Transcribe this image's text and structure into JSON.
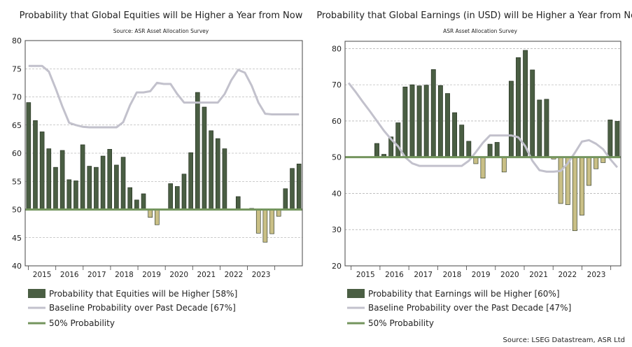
{
  "source_note": "Source: LSEG Datastream,  ASR Ltd",
  "chart_data": [
    {
      "type": "bar",
      "title": "Probability that Global Equities will be Higher a Year from Now",
      "subtitle": "Source: ASR Asset Allocation Survey",
      "ylim": [
        40,
        80
      ],
      "yticks": [
        40,
        45,
        50,
        55,
        60,
        65,
        70,
        75,
        80
      ],
      "xticks": [
        "2015",
        "2016",
        "2017",
        "2018",
        "2019",
        "2020",
        "2021",
        "2022",
        "2023"
      ],
      "baseline_level": 50,
      "series": [
        {
          "name": "Probability that Equities will be Higher [58%]",
          "kind": "bar",
          "values": [
            69,
            65.8,
            63.8,
            60.8,
            57.5,
            60.5,
            55.3,
            55.1,
            61.5,
            57.7,
            57.5,
            59.5,
            60.7,
            57.9,
            59.3,
            53.9,
            51.7,
            52.8,
            48.6,
            47.3,
            null,
            54.6,
            54.1,
            56.3,
            60.1,
            70.8,
            68.2,
            64.0,
            62.6,
            60.8,
            null,
            52.3,
            null,
            50.2,
            45.8,
            44.2,
            45.7,
            48.8,
            53.7,
            57.3,
            58.1
          ]
        },
        {
          "name": "Baseline Probability over Past Decade [67%]",
          "kind": "line",
          "values": [
            75.5,
            75.5,
            75.5,
            74.5,
            71.5,
            68.3,
            65.4,
            65.0,
            64.7,
            64.6,
            64.6,
            64.6,
            64.6,
            64.6,
            65.5,
            68.5,
            70.8,
            70.8,
            71.0,
            72.5,
            72.3,
            72.3,
            70.5,
            69.0,
            69.0,
            69.0,
            69.0,
            69.0,
            69.0,
            70.5,
            73.0,
            74.8,
            74.3,
            72.0,
            69.0,
            67.0,
            66.9,
            66.9,
            66.9,
            66.9,
            66.9
          ]
        },
        {
          "name": "50% Probability",
          "kind": "hline",
          "value": 50
        }
      ]
    },
    {
      "type": "bar",
      "title": "Probability that Global Earnings (in USD) will be Higher a Year from Now",
      "subtitle": "ASR Asset Allocation Survey",
      "ylim": [
        20,
        82
      ],
      "yticks": [
        20,
        30,
        40,
        50,
        60,
        70,
        80
      ],
      "xticks": [
        "2015",
        "2016",
        "2017",
        "2018",
        "2019",
        "2020",
        "2021",
        "2022",
        "2023"
      ],
      "baseline_level": 50,
      "series": [
        {
          "name": "Probability that Earnings will be Higher [60%]",
          "kind": "bar",
          "values": [
            null,
            null,
            null,
            null,
            53.8,
            50.8,
            55.6,
            59.5,
            69.4,
            70.0,
            69.7,
            69.9,
            74.2,
            69.8,
            67.6,
            62.3,
            58.9,
            54.4,
            48.2,
            44.2,
            53.6,
            54.1,
            45.9,
            71.0,
            77.5,
            79.5,
            74.1,
            65.8,
            66.0,
            49.5,
            37.2,
            36.9,
            29.7,
            34.0,
            42.2,
            46.8,
            48.5,
            60.3,
            59.9
          ]
        },
        {
          "name": "Baseline Probability over the Past Decade [47%]",
          "kind": "line",
          "values": [
            70.5,
            68.0,
            65.3,
            62.7,
            60.0,
            57.3,
            55.0,
            53.0,
            50.0,
            48.3,
            47.6,
            47.6,
            47.6,
            47.6,
            47.6,
            47.6,
            47.6,
            49.0,
            51.4,
            54.0,
            56.0,
            56.0,
            56.0,
            56.0,
            55.5,
            53.0,
            49.0,
            46.4,
            46.0,
            46.0,
            46.2,
            48.3,
            51.2,
            54.3,
            54.7,
            53.7,
            52.2,
            49.5,
            47.2
          ]
        },
        {
          "name": "50% Probability",
          "kind": "hline",
          "value": 50
        }
      ]
    }
  ],
  "colors": {
    "bar_up": "#4a5e43",
    "bar_down": "#c9bf86",
    "baseline_line": "#c2c1cc",
    "fifty_line": "#74955e",
    "grid": "#9a9a9a"
  }
}
